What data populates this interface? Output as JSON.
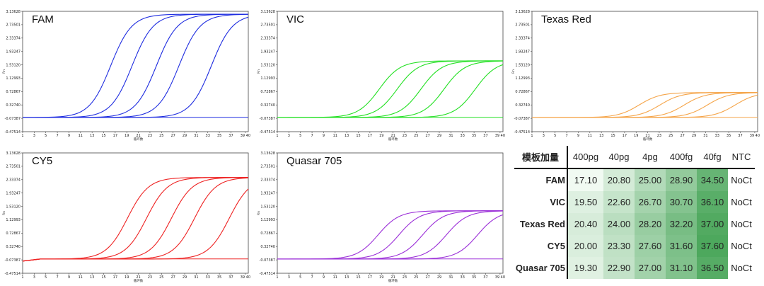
{
  "colors": {
    "FAM": "#1f2de0",
    "VIC": "#22e022",
    "Texas Red": "#f5a54a",
    "CY5": "#ee2222",
    "Quasar 705": "#9b2fd8",
    "heat_low": "#f2faf3",
    "heat_high": "#4aa65a"
  },
  "chart_data": [
    {
      "type": "line",
      "title": "FAM",
      "xlabel": "循环数",
      "ylabel": "Rn",
      "x_ticks": [
        "1",
        "3",
        "5",
        "7",
        "9",
        "11",
        "13",
        "15",
        "17",
        "19",
        "21",
        "23",
        "25",
        "27",
        "29",
        "31",
        "33",
        "35",
        "37",
        "39 40"
      ],
      "y_ticks": [
        "3.13628",
        "2.73501",
        "2.33374",
        "1.93247",
        "1.53120",
        "1.12993",
        "0.72867",
        "0.32740",
        "-0.07387",
        "-0.47514"
      ],
      "xlim": [
        1,
        40
      ],
      "ylim": [
        -0.47514,
        3.13628
      ],
      "plateau": 3.1,
      "series": [
        {
          "name": "400pg",
          "ct": 17.1
        },
        {
          "name": "40pg",
          "ct": 20.8
        },
        {
          "name": "4pg",
          "ct": 25.0
        },
        {
          "name": "400fg",
          "ct": 28.9
        },
        {
          "name": "40fg",
          "ct": 34.5
        },
        {
          "name": "NTC",
          "ct": null
        }
      ]
    },
    {
      "type": "line",
      "title": "VIC",
      "xlabel": "循环数",
      "ylabel": "Rn",
      "x_ticks": [
        "1",
        "3",
        "5",
        "7",
        "9",
        "11",
        "13",
        "15",
        "17",
        "19",
        "21",
        "23",
        "25",
        "27",
        "29",
        "31",
        "33",
        "35",
        "37",
        "39 40"
      ],
      "y_ticks": [
        "3.13628",
        "2.73501",
        "2.33374",
        "1.93247",
        "1.53120",
        "1.12993",
        "0.72867",
        "0.32740",
        "-0.07387",
        "-0.47514"
      ],
      "xlim": [
        1,
        40
      ],
      "ylim": [
        -0.47514,
        3.13628
      ],
      "plateau": 1.7,
      "series": [
        {
          "name": "400pg",
          "ct": 19.5
        },
        {
          "name": "40pg",
          "ct": 22.6
        },
        {
          "name": "4pg",
          "ct": 26.7
        },
        {
          "name": "400fg",
          "ct": 30.7
        },
        {
          "name": "40fg",
          "ct": 36.1
        },
        {
          "name": "NTC",
          "ct": null
        }
      ]
    },
    {
      "type": "line",
      "title": "Texas Red",
      "xlabel": "循环数",
      "ylabel": "Rn",
      "x_ticks": [
        "1",
        "3",
        "5",
        "7",
        "9",
        "11",
        "13",
        "15",
        "17",
        "19",
        "21",
        "23",
        "25",
        "27",
        "29",
        "31",
        "33",
        "35",
        "37",
        "39 40"
      ],
      "y_ticks": [
        "3.13628",
        "2.73501",
        "2.33374",
        "1.93247",
        "1.53120",
        "1.12993",
        "0.72867",
        "0.32740",
        "-0.07387",
        "-0.47514"
      ],
      "xlim": [
        1,
        40
      ],
      "ylim": [
        -0.47514,
        3.13628
      ],
      "plateau": 0.75,
      "series": [
        {
          "name": "400pg",
          "ct": 20.4
        },
        {
          "name": "40pg",
          "ct": 24.0
        },
        {
          "name": "4pg",
          "ct": 28.2
        },
        {
          "name": "400fg",
          "ct": 32.2
        },
        {
          "name": "40fg",
          "ct": 37.0
        },
        {
          "name": "NTC",
          "ct": null
        }
      ]
    },
    {
      "type": "line",
      "title": "CY5",
      "xlabel": "循环数",
      "ylabel": "Rn",
      "x_ticks": [
        "1",
        "3",
        "5",
        "7",
        "9",
        "11",
        "13",
        "15",
        "17",
        "19",
        "21",
        "23",
        "25",
        "27",
        "29",
        "31",
        "33",
        "35",
        "37",
        "39 40"
      ],
      "y_ticks": [
        "3.13628",
        "2.73501",
        "2.33374",
        "1.93247",
        "1.53120",
        "1.12993",
        "0.72867",
        "0.32740",
        "-0.07387",
        "-0.47514"
      ],
      "xlim": [
        1,
        40
      ],
      "ylim": [
        -0.47514,
        3.13628
      ],
      "plateau": 2.45,
      "series": [
        {
          "name": "400pg",
          "ct": 20.0
        },
        {
          "name": "40pg",
          "ct": 23.3
        },
        {
          "name": "4pg",
          "ct": 27.6
        },
        {
          "name": "400fg",
          "ct": 31.6
        },
        {
          "name": "40fg",
          "ct": 37.6
        },
        {
          "name": "NTC",
          "ct": null
        }
      ]
    },
    {
      "type": "line",
      "title": "Quasar 705",
      "xlabel": "循环数",
      "ylabel": "Rn",
      "x_ticks": [
        "1",
        "3",
        "5",
        "7",
        "9",
        "11",
        "13",
        "15",
        "17",
        "19",
        "21",
        "23",
        "25",
        "27",
        "29",
        "31",
        "33",
        "35",
        "37",
        "39 40"
      ],
      "y_ticks": [
        "3.13628",
        "2.73501",
        "2.33374",
        "1.93247",
        "1.53120",
        "1.12993",
        "0.72867",
        "0.32740",
        "-0.07387",
        "-0.47514"
      ],
      "xlim": [
        1,
        40
      ],
      "ylim": [
        -0.47514,
        3.13628
      ],
      "plateau": 1.45,
      "series": [
        {
          "name": "400pg",
          "ct": 19.3
        },
        {
          "name": "40pg",
          "ct": 22.9
        },
        {
          "name": "4pg",
          "ct": 27.0
        },
        {
          "name": "400fg",
          "ct": 31.1
        },
        {
          "name": "40fg",
          "ct": 36.5
        },
        {
          "name": "NTC",
          "ct": null
        }
      ]
    },
    {
      "type": "table",
      "corner_label": "模板加量",
      "columns": [
        "400pg",
        "40pg",
        "4pg",
        "400fg",
        "40fg",
        "NTC"
      ],
      "rows": [
        {
          "label": "FAM",
          "values": [
            "17.10",
            "20.80",
            "25.00",
            "28.90",
            "34.50",
            "NoCt"
          ]
        },
        {
          "label": "VIC",
          "values": [
            "19.50",
            "22.60",
            "26.70",
            "30.70",
            "36.10",
            "NoCt"
          ]
        },
        {
          "label": "Texas Red",
          "values": [
            "20.40",
            "24.00",
            "28.20",
            "32.20",
            "37.00",
            "NoCt"
          ]
        },
        {
          "label": "CY5",
          "values": [
            "20.00",
            "23.30",
            "27.60",
            "31.60",
            "37.60",
            "NoCt"
          ]
        },
        {
          "label": "Quasar 705",
          "values": [
            "19.30",
            "22.90",
            "27.00",
            "31.10",
            "36.50",
            "NoCt"
          ]
        }
      ]
    }
  ]
}
